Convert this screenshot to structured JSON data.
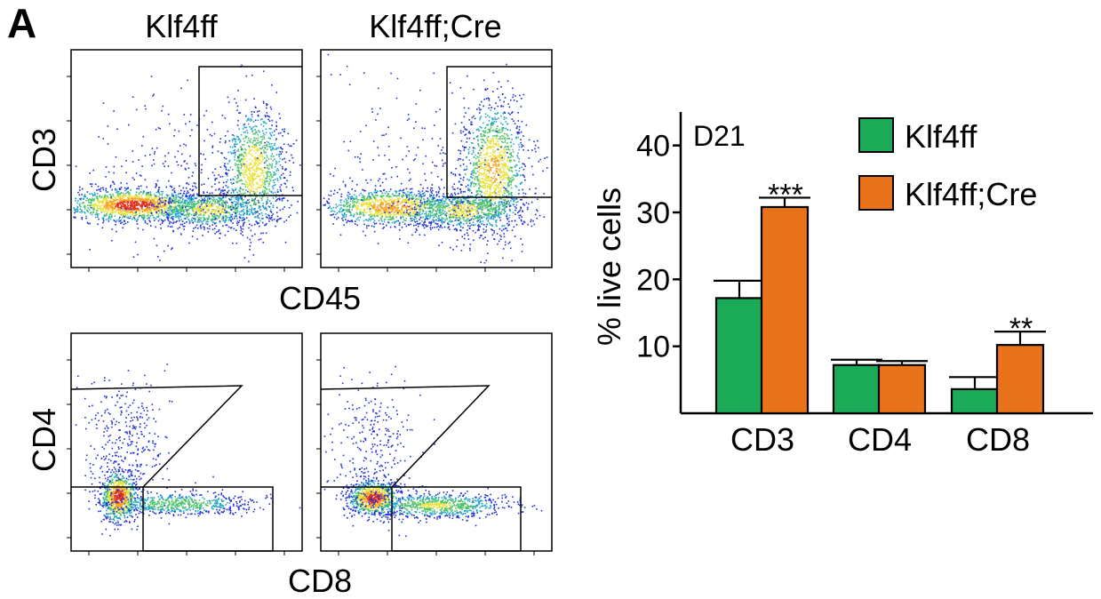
{
  "panel_label": "A",
  "flow": {
    "col_titles": [
      "Klf4ff",
      "Klf4ff;Cre"
    ],
    "top_row": {
      "y_label": "CD3",
      "x_label": "CD45"
    },
    "bottom_row": {
      "y_label": "CD4",
      "x_label": "CD8"
    }
  },
  "chart_data": {
    "type": "bar",
    "annotation": "D21",
    "ylabel": "% live cells",
    "xlabel": "",
    "ylim": [
      0,
      45
    ],
    "yticks": [
      10,
      20,
      30,
      40
    ],
    "categories": [
      "CD3",
      "CD4",
      "CD8"
    ],
    "legend_placement": "top-right",
    "series": [
      {
        "name": "Klf4ff",
        "color": "#1aaa58",
        "values": [
          17.2,
          7.2,
          3.6
        ],
        "errors": [
          2.6,
          0.8,
          1.8
        ]
      },
      {
        "name": "Klf4ff;Cre",
        "color": "#e8731a",
        "values": [
          30.8,
          7.2,
          10.2
        ],
        "errors": [
          1.4,
          0.6,
          2.0
        ]
      }
    ],
    "significance": [
      "***",
      "",
      "**"
    ]
  }
}
